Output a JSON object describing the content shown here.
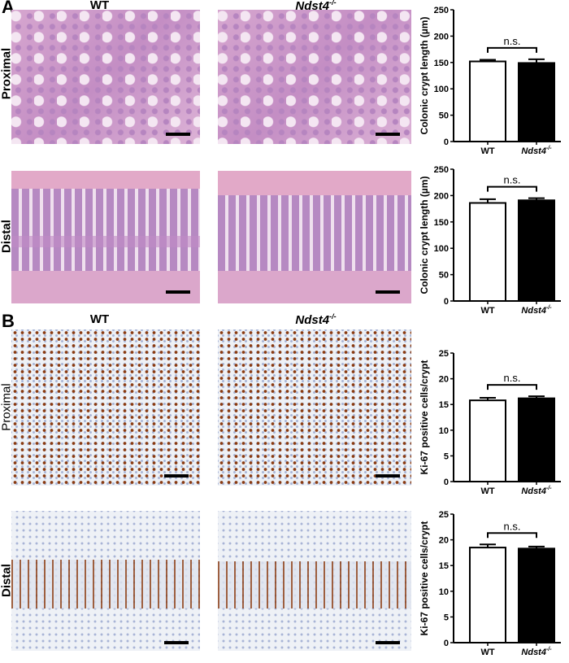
{
  "panels": [
    {
      "letter": "A",
      "columns": [
        "WT",
        "Ndst4-/-"
      ],
      "rows": [
        "Proximal",
        "Distal"
      ]
    },
    {
      "letter": "B",
      "columns": [
        "WT",
        "Ndst4-/-"
      ],
      "rows": [
        "Proximal",
        "Distal"
      ]
    }
  ],
  "colors": {
    "wt_bar": "#ffffff",
    "ko_bar": "#000000",
    "he_stain": "#c48ec4",
    "ki67_stain": "#8a3b12"
  },
  "chart_data": [
    {
      "type": "bar",
      "panel": "A",
      "row": "Proximal",
      "categories": [
        "WT",
        "Ndst4-/-"
      ],
      "values": [
        152,
        149
      ],
      "errors": [
        3,
        7
      ],
      "ylabel": "Colonic crypt length (µm)",
      "ylim": [
        0,
        250
      ],
      "yticks": [
        0,
        50,
        100,
        150,
        200,
        250
      ],
      "annotation": "n.s."
    },
    {
      "type": "bar",
      "panel": "A",
      "row": "Distal",
      "categories": [
        "WT",
        "Ndst4-/-"
      ],
      "values": [
        186,
        191
      ],
      "errors": [
        7,
        4
      ],
      "ylabel": "Colonic crypt length (µm)",
      "ylim": [
        0,
        250
      ],
      "yticks": [
        0,
        50,
        100,
        150,
        200,
        250
      ],
      "annotation": "n.s."
    },
    {
      "type": "bar",
      "panel": "B",
      "row": "Proximal",
      "categories": [
        "WT",
        "Ndst4-/-"
      ],
      "values": [
        15.8,
        16.2
      ],
      "errors": [
        0.5,
        0.4
      ],
      "ylabel": "Ki-67 positive cells/crypt",
      "ylim": [
        0,
        25
      ],
      "yticks": [
        0,
        5,
        10,
        15,
        20,
        25
      ],
      "annotation": "n.s."
    },
    {
      "type": "bar",
      "panel": "B",
      "row": "Distal",
      "categories": [
        "WT",
        "Ndst4-/-"
      ],
      "values": [
        18.5,
        18.3
      ],
      "errors": [
        0.6,
        0.4
      ],
      "ylabel": "Ki-67 positive cells/crypt",
      "ylim": [
        0,
        25
      ],
      "yticks": [
        0,
        5,
        10,
        15,
        20,
        25
      ],
      "annotation": "n.s."
    }
  ]
}
